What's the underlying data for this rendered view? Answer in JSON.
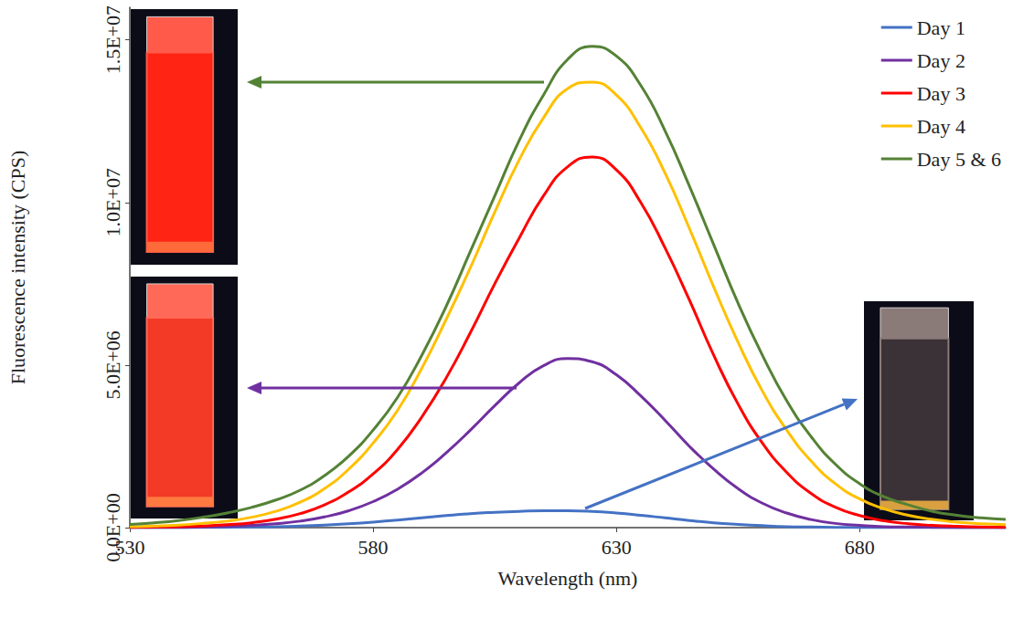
{
  "chart_data": {
    "type": "line",
    "x_label": "Wavelength (nm)",
    "y_label": "Fluorescence intensity (CPS)",
    "x": [
      530,
      535,
      540,
      545,
      550,
      555,
      560,
      565,
      570,
      575,
      580,
      585,
      590,
      595,
      600,
      605,
      610,
      615,
      620,
      625,
      630,
      635,
      640,
      645,
      650,
      655,
      660,
      665,
      670,
      675,
      680,
      685,
      690,
      695,
      700,
      705,
      710
    ],
    "series": [
      {
        "name": "Day 1",
        "color": "#4472c4",
        "values": [
          0,
          0,
          0,
          10000,
          10000,
          20000,
          30000,
          50000,
          80000,
          120000,
          170000,
          230000,
          300000,
          370000,
          430000,
          470000,
          500000,
          520000,
          520000,
          500000,
          450000,
          380000,
          300000,
          220000,
          150000,
          100000,
          60000,
          30000,
          20000,
          10000,
          0,
          0,
          0,
          0,
          0,
          0,
          0
        ]
      },
      {
        "name": "Day 2",
        "color": "#7030a0",
        "values": [
          0,
          10000,
          10000,
          20000,
          40000,
          70000,
          120000,
          200000,
          330000,
          520000,
          800000,
          1180000,
          1680000,
          2300000,
          3000000,
          3750000,
          4450000,
          4980000,
          5200000,
          5100000,
          4700000,
          4050000,
          3300000,
          2500000,
          1800000,
          1200000,
          750000,
          450000,
          250000,
          130000,
          70000,
          30000,
          20000,
          10000,
          0,
          0,
          0
        ]
      },
      {
        "name": "Day 3",
        "color": "#ff0000",
        "values": [
          10000,
          20000,
          30000,
          50000,
          90000,
          150000,
          260000,
          430000,
          700000,
          1100000,
          1650000,
          2400000,
          3400000,
          4600000,
          6000000,
          7500000,
          8900000,
          10200000,
          11100000,
          11400000,
          11000000,
          10000000,
          8600000,
          7000000,
          5300000,
          3800000,
          2600000,
          1700000,
          1050000,
          630000,
          370000,
          210000,
          120000,
          70000,
          40000,
          20000,
          10000
        ]
      },
      {
        "name": "Day 4",
        "color": "#ffc000",
        "values": [
          30000,
          50000,
          80000,
          130000,
          200000,
          320000,
          500000,
          780000,
          1200000,
          1800000,
          2600000,
          3600000,
          4900000,
          6400000,
          8000000,
          9700000,
          11300000,
          12600000,
          13500000,
          13700000,
          13300000,
          12300000,
          10900000,
          9200000,
          7400000,
          5700000,
          4200000,
          3000000,
          2050000,
          1350000,
          880000,
          580000,
          380000,
          250000,
          170000,
          120000,
          90000
        ]
      },
      {
        "name": "Day 5 & 6",
        "color": "#548235",
        "values": [
          100000,
          150000,
          220000,
          320000,
          450000,
          620000,
          850000,
          1150000,
          1600000,
          2200000,
          3000000,
          4000000,
          5300000,
          6800000,
          8500000,
          10200000,
          11900000,
          13300000,
          14400000,
          14800000,
          14500000,
          13600000,
          12200000,
          10500000,
          8700000,
          6900000,
          5300000,
          3900000,
          2800000,
          1950000,
          1350000,
          950000,
          700000,
          500000,
          380000,
          300000,
          250000
        ]
      }
    ],
    "xlim": [
      530,
      710
    ],
    "xticks": [
      530,
      580,
      630,
      680
    ],
    "ylim": [
      0,
      16000000
    ],
    "yticks": [
      {
        "value": 0,
        "label": "0.0E+00"
      },
      {
        "value": 5000000,
        "label": "5.0E+06"
      },
      {
        "value": 10000000,
        "label": "1.0E+07"
      },
      {
        "value": 15000000,
        "label": "1.5E+07"
      }
    ],
    "grid": false,
    "legend": "top-right"
  }
}
